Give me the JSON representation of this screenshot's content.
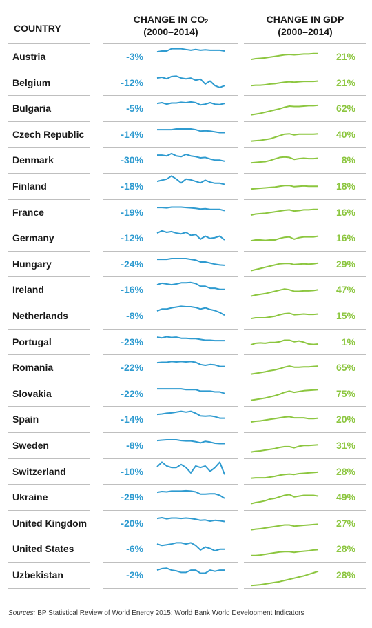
{
  "headers": {
    "country": "COUNTRY",
    "co2_line1_pre": "CHANGE IN CO",
    "co2_sub": "2",
    "co2_line2": "(2000–2014)",
    "gdp_line1": "CHANGE IN GDP",
    "gdp_line2": "(2000–2014)"
  },
  "source": {
    "prefix": "Sources:",
    "text": " BP Statistical Review of World Energy 2015; World Bank World Development Indicators"
  },
  "colors": {
    "co2": "#2f9bd0",
    "gdp": "#8cc63f"
  },
  "chart_data": {
    "type": "table",
    "years": [
      2000,
      2001,
      2002,
      2003,
      2004,
      2005,
      2006,
      2007,
      2008,
      2009,
      2010,
      2011,
      2012,
      2013,
      2014
    ],
    "rows": [
      {
        "country": "Austria",
        "co2_change": "-3%",
        "gdp_change": "21%",
        "co2": [
          60,
          62,
          62,
          68,
          68,
          68,
          66,
          64,
          66,
          64,
          65,
          64,
          64,
          64,
          62
        ],
        "gdp": [
          40,
          42,
          43,
          44,
          46,
          48,
          50,
          52,
          53,
          52,
          53,
          54,
          54,
          55,
          55
        ]
      },
      {
        "country": "Belgium",
        "co2_change": "-12%",
        "gdp_change": "21%",
        "co2": [
          60,
          62,
          58,
          64,
          65,
          60,
          58,
          60,
          54,
          57,
          44,
          52,
          40,
          35,
          40
        ],
        "gdp": [
          40,
          41,
          41,
          42,
          44,
          45,
          47,
          49,
          50,
          49,
          50,
          51,
          51,
          51,
          52
        ]
      },
      {
        "country": "Bulgaria",
        "co2_change": "-5%",
        "gdp_change": "62%",
        "co2": [
          60,
          62,
          58,
          61,
          61,
          63,
          62,
          64,
          62,
          56,
          58,
          62,
          58,
          57,
          60
        ],
        "gdp": [
          30,
          32,
          34,
          37,
          40,
          43,
          46,
          50,
          53,
          52,
          52,
          53,
          54,
          54,
          55
        ]
      },
      {
        "country": "Czech Republic",
        "co2_change": "-14%",
        "gdp_change": "40%",
        "co2": [
          60,
          60,
          60,
          60,
          62,
          62,
          62,
          62,
          60,
          56,
          57,
          56,
          54,
          52,
          52
        ],
        "gdp": [
          30,
          31,
          32,
          34,
          36,
          40,
          44,
          48,
          49,
          46,
          48,
          48,
          48,
          48,
          49
        ]
      },
      {
        "country": "Denmark",
        "co2_change": "-30%",
        "gdp_change": "8%",
        "co2": [
          60,
          60,
          58,
          64,
          58,
          56,
          62,
          58,
          56,
          53,
          54,
          50,
          47,
          47,
          44
        ],
        "gdp": [
          40,
          41,
          42,
          43,
          46,
          50,
          54,
          55,
          54,
          49,
          51,
          52,
          51,
          51,
          52
        ]
      },
      {
        "country": "Finland",
        "co2_change": "-18%",
        "gdp_change": "18%",
        "co2": [
          60,
          63,
          66,
          74,
          66,
          56,
          66,
          64,
          60,
          56,
          63,
          58,
          55,
          55,
          52
        ],
        "gdp": [
          40,
          41,
          42,
          43,
          44,
          45,
          47,
          49,
          49,
          46,
          47,
          48,
          47,
          47,
          47
        ]
      },
      {
        "country": "France",
        "co2_change": "-19%",
        "gdp_change": "16%",
        "co2": [
          60,
          60,
          59,
          61,
          61,
          61,
          60,
          59,
          58,
          56,
          57,
          55,
          55,
          55,
          52
        ],
        "gdp": [
          40,
          43,
          44,
          45,
          47,
          49,
          51,
          53,
          54,
          51,
          52,
          54,
          54,
          55,
          55
        ]
      },
      {
        "country": "Germany",
        "co2_change": "-12%",
        "gdp_change": "16%",
        "co2": [
          60,
          66,
          62,
          64,
          60,
          58,
          62,
          54,
          56,
          44,
          52,
          46,
          48,
          52,
          42
        ],
        "gdp": [
          40,
          42,
          42,
          41,
          42,
          42,
          46,
          49,
          50,
          44,
          48,
          50,
          50,
          50,
          52
        ]
      },
      {
        "country": "Hungary",
        "co2_change": "-24%",
        "gdp_change": "29%",
        "co2": [
          60,
          60,
          60,
          62,
          62,
          62,
          62,
          60,
          58,
          53,
          53,
          50,
          47,
          45,
          44
        ],
        "gdp": [
          30,
          33,
          36,
          39,
          42,
          45,
          48,
          49,
          49,
          46,
          47,
          48,
          47,
          48,
          50
        ]
      },
      {
        "country": "Ireland",
        "co2_change": "-16%",
        "gdp_change": "47%",
        "co2": [
          60,
          64,
          62,
          60,
          62,
          65,
          65,
          66,
          63,
          56,
          56,
          51,
          51,
          48,
          48
        ],
        "gdp": [
          30,
          33,
          35,
          37,
          40,
          43,
          46,
          49,
          47,
          43,
          43,
          44,
          44,
          45,
          47
        ]
      },
      {
        "country": "Netherlands",
        "co2_change": "-8%",
        "gdp_change": "15%",
        "co2": [
          60,
          65,
          65,
          68,
          70,
          72,
          71,
          71,
          69,
          65,
          68,
          64,
          61,
          56,
          49
        ],
        "gdp": [
          40,
          42,
          42,
          42,
          44,
          46,
          50,
          53,
          54,
          50,
          51,
          52,
          51,
          51,
          52
        ]
      },
      {
        "country": "Portugal",
        "co2_change": "-23%",
        "gdp_change": "1%",
        "co2": [
          60,
          58,
          61,
          59,
          60,
          57,
          57,
          56,
          56,
          54,
          52,
          52,
          51,
          51,
          51
        ],
        "gdp": [
          40,
          44,
          45,
          44,
          46,
          46,
          48,
          52,
          52,
          48,
          50,
          47,
          42,
          41,
          42
        ]
      },
      {
        "country": "Romania",
        "co2_change": "-22%",
        "gdp_change": "65%",
        "co2": [
          60,
          61,
          61,
          63,
          62,
          63,
          62,
          63,
          61,
          55,
          53,
          55,
          54,
          50,
          50
        ],
        "gdp": [
          30,
          32,
          34,
          36,
          39,
          41,
          44,
          48,
          51,
          48,
          48,
          49,
          49,
          50,
          51
        ]
      },
      {
        "country": "Slovakia",
        "co2_change": "-22%",
        "gdp_change": "75%",
        "co2": [
          60,
          60,
          60,
          60,
          60,
          60,
          58,
          58,
          58,
          54,
          54,
          54,
          52,
          52,
          48
        ],
        "gdp": [
          30,
          32,
          34,
          36,
          39,
          42,
          46,
          51,
          54,
          51,
          53,
          55,
          56,
          57,
          58
        ]
      },
      {
        "country": "Spain",
        "co2_change": "-14%",
        "gdp_change": "20%",
        "co2": [
          60,
          61,
          63,
          64,
          66,
          68,
          66,
          68,
          63,
          56,
          55,
          56,
          54,
          50,
          50
        ],
        "gdp": [
          40,
          42,
          43,
          45,
          47,
          49,
          51,
          53,
          54,
          51,
          51,
          51,
          49,
          49,
          50
        ]
      },
      {
        "country": "Sweden",
        "co2_change": "-8%",
        "gdp_change": "31%",
        "co2": [
          60,
          61,
          62,
          62,
          62,
          60,
          59,
          59,
          57,
          54,
          58,
          56,
          53,
          52,
          52
        ],
        "gdp": [
          30,
          32,
          33,
          35,
          37,
          39,
          42,
          44,
          44,
          41,
          45,
          47,
          47,
          48,
          49
        ]
      },
      {
        "country": "Switzerland",
        "co2_change": "-10%",
        "gdp_change": "28%",
        "co2": [
          60,
          72,
          62,
          58,
          58,
          66,
          58,
          44,
          62,
          58,
          62,
          48,
          58,
          72,
          40
        ],
        "gdp": [
          30,
          31,
          31,
          31,
          33,
          35,
          38,
          40,
          41,
          40,
          42,
          43,
          44,
          45,
          46
        ]
      },
      {
        "country": "Ukraine",
        "co2_change": "-29%",
        "gdp_change": "49%",
        "co2": [
          60,
          62,
          61,
          63,
          63,
          63,
          64,
          63,
          61,
          55,
          55,
          56,
          56,
          52,
          44
        ],
        "gdp": [
          30,
          33,
          35,
          38,
          42,
          44,
          48,
          52,
          54,
          48,
          50,
          52,
          52,
          52,
          50
        ]
      },
      {
        "country": "United Kingdom",
        "co2_change": "-20%",
        "gdp_change": "27%",
        "co2": [
          60,
          62,
          59,
          61,
          61,
          60,
          61,
          60,
          58,
          55,
          56,
          53,
          55,
          54,
          52
        ],
        "gdp": [
          30,
          32,
          33,
          35,
          37,
          39,
          41,
          43,
          43,
          40,
          41,
          42,
          43,
          44,
          45
        ]
      },
      {
        "country": "United States",
        "co2_change": "-6%",
        "gdp_change": "28%",
        "co2": [
          60,
          56,
          58,
          60,
          63,
          63,
          60,
          63,
          56,
          44,
          52,
          48,
          42,
          46,
          46
        ],
        "gdp": [
          30,
          30,
          31,
          33,
          35,
          37,
          39,
          40,
          40,
          38,
          40,
          41,
          42,
          44,
          45
        ]
      },
      {
        "country": "Uzbekistan",
        "co2_change": "-2%",
        "gdp_change": "28%",
        "co2": [
          60,
          64,
          65,
          60,
          58,
          54,
          54,
          60,
          60,
          52,
          52,
          60,
          57,
          60,
          60
        ],
        "gdp": [
          20,
          21,
          22,
          24,
          26,
          28,
          30,
          33,
          36,
          39,
          42,
          45,
          49,
          53,
          57
        ]
      }
    ]
  }
}
